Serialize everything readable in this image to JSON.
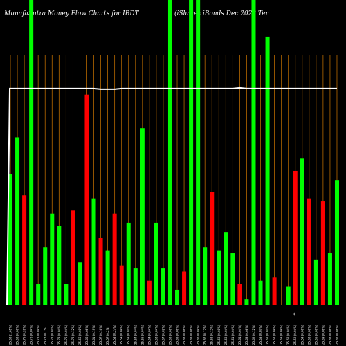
{
  "chart_data": {
    "type": "bar",
    "title_left": "MunafaSutra  Money Flow  Charts for IBDT",
    "title_right": "(iShares iBonds Dec 2028  Ter",
    "ylim": [
      0,
      100
    ],
    "grid": "vertical",
    "colors": {
      "background": "#000000",
      "up": "#00ff00",
      "down": "#ff0000",
      "grid": "#b86a00",
      "line": "#ffffff"
    },
    "categories": [
      "25.63 (1.61%)",
      "25.63 (0.08%)",
      "25.75 (0.28%)",
      "25.76 (0.04%)",
      "25.75 (0.04%)",
      "25.78 (0.1%)",
      "25.77 (0.04%)",
      "25.73 (0.04%)",
      "25.75 (0.04%)",
      "25.73 (0.12%)",
      "25.66 (0.08%)",
      "25.66 (0.08%)",
      "25.61 (0.19%)",
      "25.57 (0.16%)",
      "25.57 (0.2%)",
      "25.58 (0.23%)",
      "25.59 (0.08%)",
      "25.63 (0.04%)",
      "25.64 (0.04%)",
      "25.65 (0.04%)",
      "25.64 (0.04%)",
      "25.68 (0.04%)",
      "25.67 (0.02%)",
      "25.63 (0.08%)",
      "25.65 (0.08%)",
      "25.63 (0.08%)",
      "25.65 (0.08%)",
      "25.66 (0.04%)",
      "25.62 (0.12%)",
      "25.62 (0.12%)",
      "25.63 (0.08%)",
      "25.63 (0.04%)",
      "25.61 (0.04%)",
      "25.64 (0.04%)",
      "25.63 (0.08%)",
      "25.62 (0.12%)",
      "25.63 (0.04%)",
      "25.62 (0.04%)",
      "25.67 (0.08%)",
      "25.63 (0.08%)",
      "25.62 (0.04%)",
      "25.59 (0.04%)",
      "25.59 (0.08%)",
      "25.63 (0.08%)",
      "25.65 (0.08%)",
      "25.69 (0.08%)",
      "25.63 (0.08%)",
      "25.67 (0.08%)"
    ],
    "series": [
      {
        "colors": [
          "g",
          "g",
          "r",
          "g",
          "g",
          "g",
          "g",
          "g",
          "g",
          "r",
          "g",
          "r",
          "g",
          "r",
          "g",
          "r",
          "r",
          "g",
          "g",
          "g",
          "r",
          "g",
          "g",
          "g",
          "g",
          "r",
          "g",
          "g",
          "g",
          "r",
          "g",
          "g",
          "g",
          "r",
          "g",
          "g",
          "g",
          "g",
          "r",
          "r",
          "g",
          "r",
          "g",
          "r",
          "g",
          "r",
          "g",
          "g"
        ],
        "values": [
          43,
          55,
          36,
          100,
          7,
          19,
          30,
          26,
          7,
          31,
          14,
          69,
          35,
          22,
          18,
          30,
          13,
          27,
          12,
          58,
          8,
          27,
          12,
          100,
          5,
          11,
          100,
          100,
          19,
          37,
          18,
          24,
          17,
          7,
          2,
          100,
          8,
          88,
          9,
          0,
          6,
          44,
          48,
          35,
          15,
          34,
          17,
          41
        ]
      }
    ],
    "line": [
      71,
      71,
      71,
      71,
      71,
      71,
      71,
      71,
      71,
      71,
      71,
      71,
      71,
      71,
      71,
      71,
      71,
      71,
      71,
      71,
      71,
      71,
      71,
      71,
      71,
      71,
      71,
      71,
      71,
      71,
      71,
      71,
      71,
      71,
      71,
      71,
      71,
      71,
      71,
      71,
      71,
      71,
      71,
      71,
      71,
      71,
      71,
      71
    ],
    "x_tick_labels": [
      "25.63 (1.61%)",
      "25.63 (0.08%)",
      "25.75 (0.28%)",
      "25.76 (0.04%)",
      "25.75 (0.04%)",
      "25.78 (0.1%)",
      "25.77 (0.04%)",
      "25.73 (0.04%)",
      "25.75 (0.04%)",
      "25.73 (0.12%)",
      "25.66 (0.08%)",
      "25.66 (0.08%)",
      "25.61 (0.19%)",
      "25.57 (0.16%)",
      "25.57 (0.2%)",
      "25.58 (0.23%)",
      "25.59 (0.08%)",
      "25.63 (0.04%)",
      "25.64 (0.04%)",
      "25.65 (0.04%)",
      "25.64 (0.04%)",
      "25.68 (0.04%)",
      "25.67 (0.02%)",
      "25.63 (0.08%)",
      "25.65 (0.08%)",
      "25.63 (0.08%)",
      "25.65 (0.08%)",
      "25.66 (0.04%)",
      "25.62 (0.12%)",
      "25.62 (0.12%)",
      "25.63 (0.08%)",
      "25.63 (0.04%)",
      "25.61 (0.04%)",
      "25.64 (0.04%)",
      "25.63 (0.08%)",
      "25.62 (0.12%)",
      "25.63 (0.04%)",
      "25.62 (0.04%)",
      "25.67 (0.08%)",
      "25.63 (0.08%)",
      "25.62 (0.04%)",
      "25.59 (0.04%)",
      "25.59 (0.08%)",
      "25.63 (0.08%)",
      "25.65 (0.08%)",
      "25.69 (0.08%)",
      "25.63 (0.08%)",
      "25.67 (0.08%)"
    ],
    "marker": "$"
  }
}
